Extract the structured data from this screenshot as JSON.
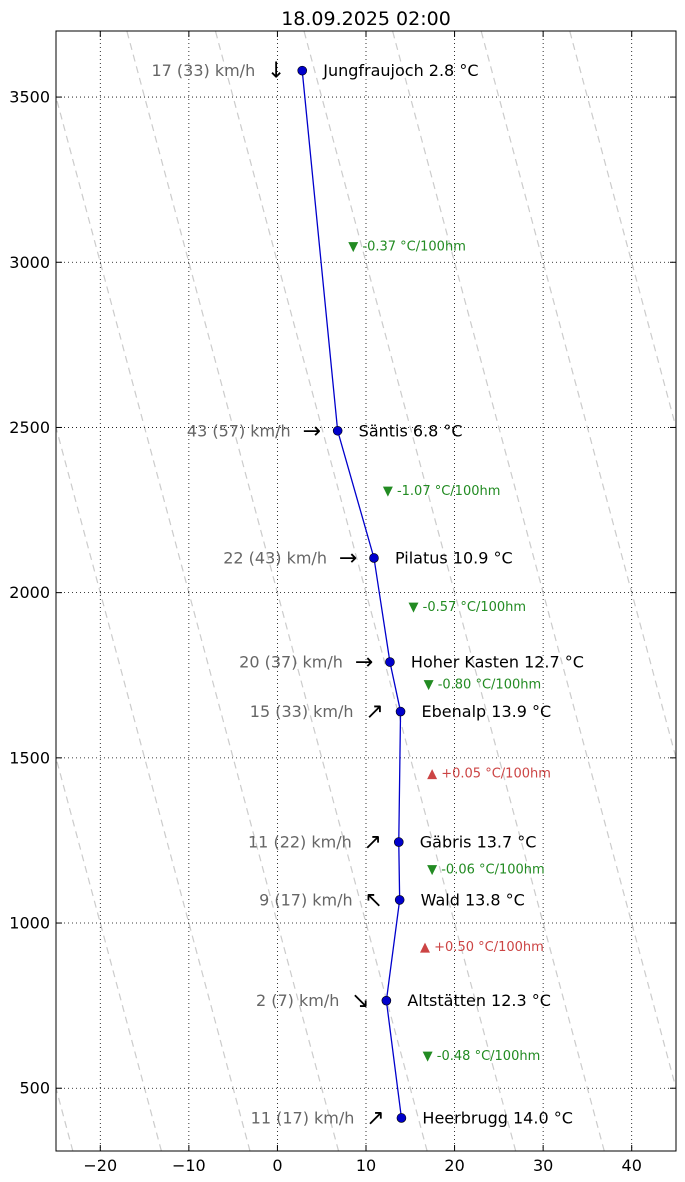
{
  "chart_data": {
    "type": "line",
    "title": "18.09.2025 02:00",
    "xlabel": "",
    "ylabel": "",
    "xlim": [
      -25,
      45
    ],
    "ylim": [
      310,
      3700
    ],
    "xticks": [
      -20,
      -10,
      0,
      10,
      20,
      30,
      40
    ],
    "yticks": [
      500,
      1000,
      1500,
      2000,
      2500,
      3000,
      3500
    ],
    "grid": true,
    "line_color": "#0000cc",
    "series": [
      {
        "name": "",
        "points": [
          {
            "station": "Jungfraujoch",
            "temp": 2.8,
            "alt": 3580,
            "label": "Jungfraujoch 2.8 °C",
            "wind": "17 (33) km/h",
            "wind_dir": "S",
            "arrow": "↓"
          },
          {
            "station": "Säntis",
            "temp": 6.8,
            "alt": 2490,
            "label": "Säntis 6.8 °C",
            "wind": "43 (57) km/h",
            "wind_dir": "E",
            "arrow": "→"
          },
          {
            "station": "Pilatus",
            "temp": 10.9,
            "alt": 2105,
            "label": "Pilatus 10.9 °C",
            "wind": "22 (43) km/h",
            "wind_dir": "E",
            "arrow": "→"
          },
          {
            "station": "Hoher Kasten",
            "temp": 12.7,
            "alt": 1790,
            "label": "Hoher Kasten 12.7 °C",
            "wind": "20 (37) km/h",
            "wind_dir": "E",
            "arrow": "→"
          },
          {
            "station": "Ebenalp",
            "temp": 13.9,
            "alt": 1640,
            "label": "Ebenalp 13.9 °C",
            "wind": "15 (33) km/h",
            "wind_dir": "NE",
            "arrow": "↗"
          },
          {
            "station": "Gäbris",
            "temp": 13.7,
            "alt": 1245,
            "label": "Gäbris 13.7 °C",
            "wind": "11 (22) km/h",
            "wind_dir": "NE",
            "arrow": "↗"
          },
          {
            "station": "Wald",
            "temp": 13.8,
            "alt": 1070,
            "label": "Wald 13.8 °C",
            "wind": "9 (17) km/h",
            "wind_dir": "NW",
            "arrow": "↖"
          },
          {
            "station": "Altstätten",
            "temp": 12.3,
            "alt": 765,
            "label": "Altstätten 12.3 °C",
            "wind": "2 (7) km/h",
            "wind_dir": "SE",
            "arrow": "↘"
          },
          {
            "station": "Heerbrugg",
            "temp": 14.0,
            "alt": 410,
            "label": "Heerbrugg 14.0 °C",
            "wind": "11 (17) km/h",
            "wind_dir": "NE",
            "arrow": "↗"
          }
        ]
      }
    ],
    "lapse_rates": [
      {
        "text": "▼ -0.37 °C/100hm",
        "x": 8.0,
        "alt": 3035,
        "color": "#228b22"
      },
      {
        "text": "▼ -1.07 °C/100hm",
        "x": 11.9,
        "alt": 2295,
        "color": "#228b22"
      },
      {
        "text": "▼ -0.57 °C/100hm",
        "x": 14.8,
        "alt": 1945,
        "color": "#228b22"
      },
      {
        "text": "▼ -0.80 °C/100hm",
        "x": 16.5,
        "alt": 1710,
        "color": "#228b22"
      },
      {
        "text": "▲ +0.05 °C/100hm",
        "x": 16.9,
        "alt": 1440,
        "color": "#cc4444"
      },
      {
        "text": "▼ -0.06 °C/100hm",
        "x": 16.9,
        "alt": 1150,
        "color": "#228b22"
      },
      {
        "text": "▲ +0.50 °C/100hm",
        "x": 16.1,
        "alt": 915,
        "color": "#cc4444"
      },
      {
        "text": "▼ -0.48 °C/100hm",
        "x": 16.4,
        "alt": 585,
        "color": "#228b22"
      }
    ],
    "adiabat_lines": {
      "color": "#cccccc",
      "lapse_degC_per_100m": -1.0,
      "temps_at_alt_0": [
        -20,
        -10,
        0,
        10,
        20,
        30,
        40,
        50,
        60,
        70
      ]
    }
  }
}
